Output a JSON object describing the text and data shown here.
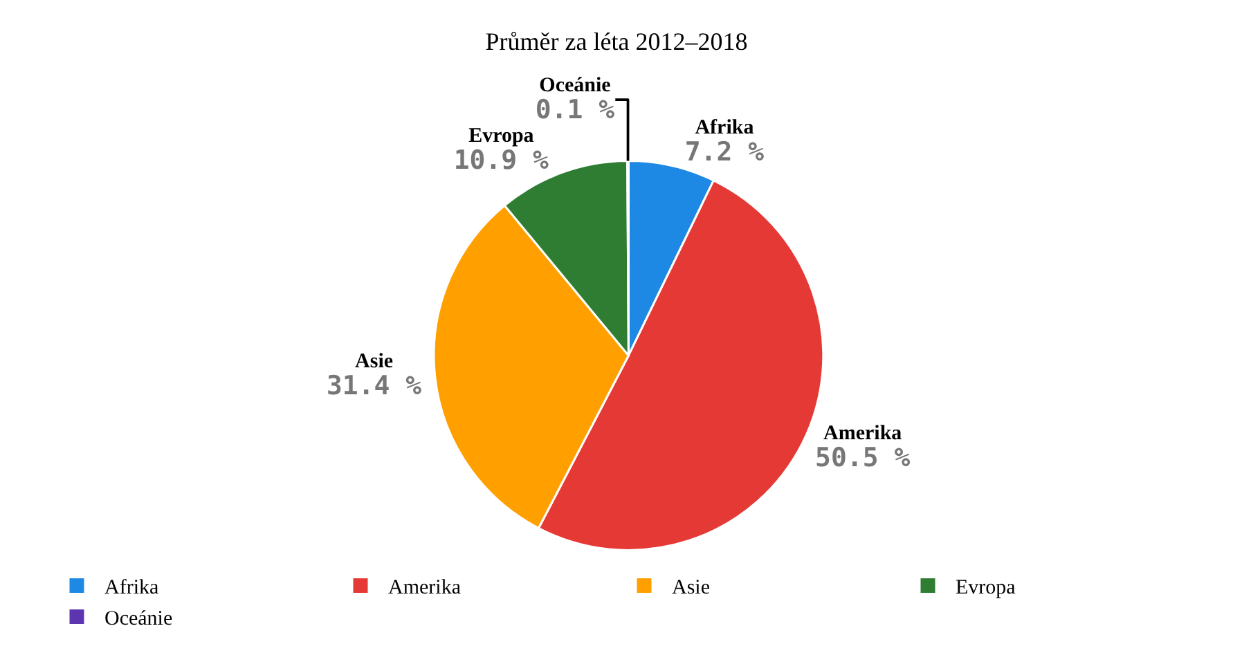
{
  "chart_data": {
    "type": "pie",
    "title": "Průměr za léta 2012–2018",
    "categories": [
      "Afrika",
      "Amerika",
      "Asie",
      "Evropa",
      "Oceánie"
    ],
    "values": [
      7.2,
      50.5,
      31.4,
      10.9,
      0.1
    ],
    "value_labels": [
      "7.2 %",
      "50.5 %",
      "31.4 %",
      "10.9 %",
      "0.1 %"
    ],
    "colors": [
      "#1e88e5",
      "#e53935",
      "#ffa000",
      "#2e7d32",
      "#5e35b1"
    ],
    "legend": "bottom"
  }
}
